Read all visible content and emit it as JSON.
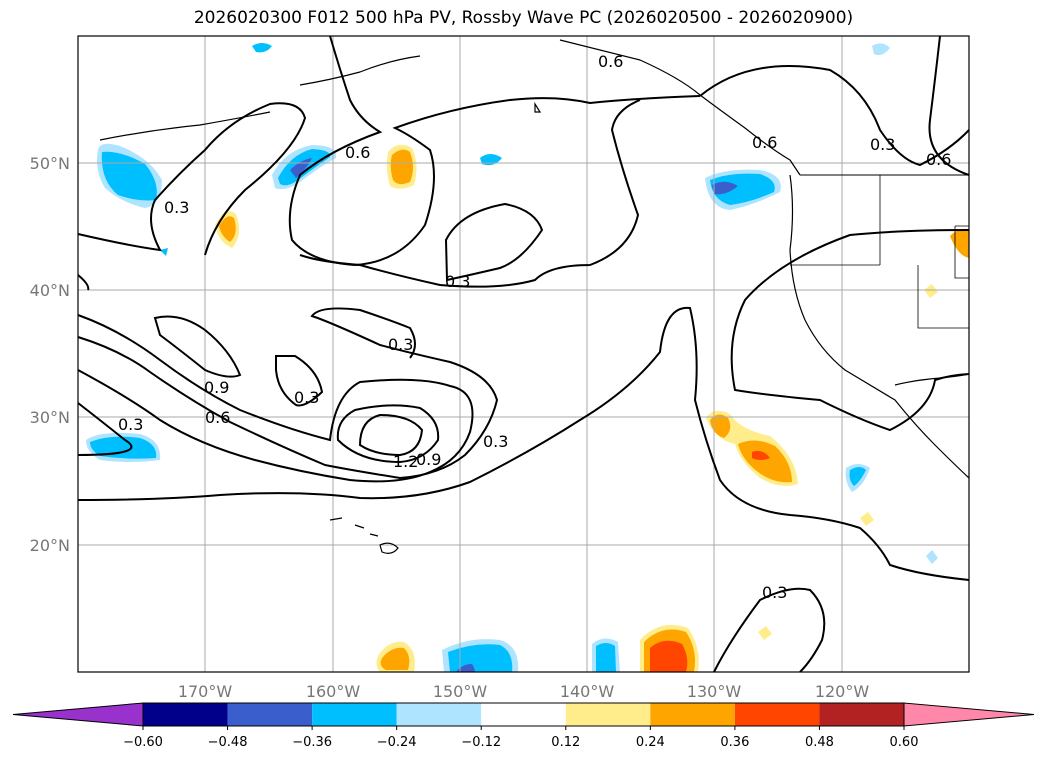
{
  "title": "2026020300 F012 500 hPa PV, Rossby Wave PC (2026020500 - 2026020900)",
  "lat_labels": [
    "50°N",
    "40°N",
    "30°N",
    "20°N"
  ],
  "lon_labels": [
    "170°W",
    "160°W",
    "150°W",
    "140°W",
    "130°W",
    "120°W"
  ],
  "colorbar": {
    "extend": "both",
    "levels": [
      -0.6,
      -0.48,
      -0.36,
      -0.24,
      -0.12,
      0.12,
      0.24,
      0.36,
      0.48,
      0.6
    ],
    "tick_labels": [
      "−0.60",
      "−0.48",
      "−0.36",
      "−0.24",
      "−0.12",
      "0.12",
      "0.24",
      "0.36",
      "0.48",
      "0.60"
    ],
    "colors": [
      "#9932cc",
      "#00008b",
      "#3a5fcd",
      "#00bfff",
      "#aee4ff",
      "#ffffff",
      "#ffec8b",
      "#ffa500",
      "#ff4500",
      "#b22222",
      "#ff88aa"
    ]
  },
  "contour_labels": [
    "0.6",
    "0.6",
    "0.3",
    "0.6",
    "0.3",
    "0.3",
    "0.3",
    "0.9",
    "0.6",
    "0.3",
    "1.2",
    "0.9",
    "0.3",
    "0.3",
    "0.3",
    "0.6"
  ]
}
